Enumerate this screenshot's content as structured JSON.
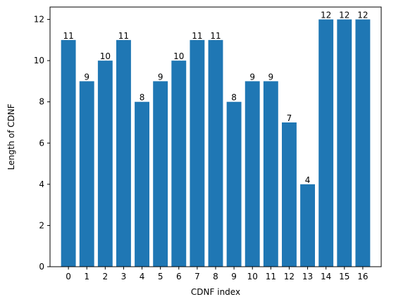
{
  "chart_data": {
    "type": "bar",
    "categories": [
      "0",
      "1",
      "2",
      "3",
      "4",
      "5",
      "6",
      "7",
      "8",
      "9",
      "10",
      "11",
      "12",
      "13",
      "14",
      "15",
      "16"
    ],
    "values": [
      11,
      9,
      10,
      11,
      8,
      9,
      10,
      11,
      11,
      8,
      9,
      9,
      7,
      4,
      12,
      12,
      12
    ],
    "data_labels": [
      "11",
      "9",
      "10",
      "11",
      "8",
      "9",
      "10",
      "11",
      "11",
      "8",
      "9",
      "9",
      "7",
      "4",
      "12",
      "12",
      "12"
    ],
    "xlabel": "CDNF index",
    "ylabel": "Length of CDNF",
    "ylim": [
      0,
      12.6
    ],
    "yticks": [
      "0",
      "2",
      "4",
      "6",
      "8",
      "10",
      "12"
    ],
    "grid": false,
    "legend": "none",
    "bar_color": "#1f77b4"
  }
}
